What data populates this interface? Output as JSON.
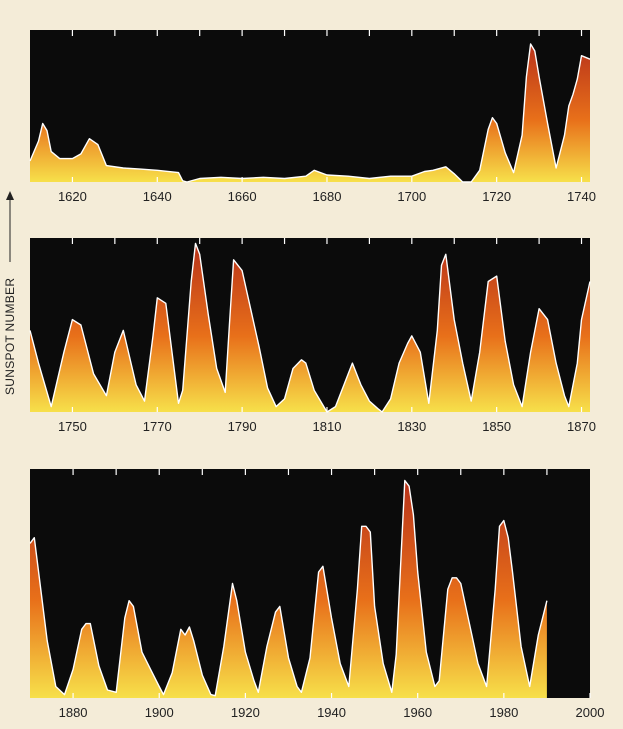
{
  "chart_data": {
    "type": "area",
    "ylabel": "SUNSPOT NUMBER",
    "colors": {
      "background": "#0b0b0b",
      "high": "#b8321a",
      "mid": "#e8701a",
      "low": "#f7e04a",
      "outline": "#ffffff",
      "page": "#f4ecd8"
    },
    "panels": [
      {
        "xlim": [
          1610,
          1742
        ],
        "xticks": [
          1620,
          1640,
          1660,
          1680,
          1700,
          1720,
          1740
        ],
        "ylim": [
          0,
          130
        ],
        "x": [
          1610,
          1612,
          1613,
          1614,
          1615,
          1617,
          1620,
          1622,
          1624,
          1626,
          1628,
          1632,
          1636,
          1640,
          1645,
          1646,
          1647,
          1650,
          1655,
          1660,
          1665,
          1670,
          1675,
          1677,
          1680,
          1685,
          1690,
          1695,
          1700,
          1703,
          1705,
          1708,
          1710,
          1712,
          1714,
          1716,
          1718,
          1719,
          1720,
          1722,
          1724,
          1726,
          1727,
          1728,
          1729,
          1730,
          1732,
          1734,
          1736,
          1737,
          1738,
          1739,
          1740,
          1742
        ],
        "y": [
          18,
          35,
          50,
          44,
          26,
          20,
          20,
          24,
          37,
          32,
          14,
          12,
          11,
          10,
          8,
          1,
          0,
          3,
          4,
          3,
          4,
          3,
          5,
          10,
          6,
          5,
          3,
          5,
          5,
          9,
          10,
          13,
          7,
          0,
          0,
          10,
          45,
          55,
          50,
          25,
          8,
          40,
          90,
          118,
          112,
          90,
          50,
          12,
          40,
          65,
          75,
          88,
          108,
          105
        ]
      },
      {
        "xlim": [
          1740,
          1872
        ],
        "xticks": [
          1750,
          1770,
          1790,
          1810,
          1830,
          1850,
          1870
        ],
        "ylim": [
          0,
          160
        ],
        "x": [
          1740,
          1742,
          1745,
          1748,
          1750,
          1752,
          1755,
          1758,
          1760,
          1762,
          1765,
          1767,
          1769,
          1770,
          1772,
          1775,
          1776,
          1778,
          1779,
          1780,
          1782,
          1784,
          1786,
          1787,
          1788,
          1790,
          1792,
          1794,
          1796,
          1798,
          1800,
          1802,
          1804,
          1805,
          1807,
          1810,
          1812,
          1815,
          1816,
          1818,
          1820,
          1822,
          1823,
          1825,
          1827,
          1829,
          1830,
          1832,
          1834,
          1836,
          1837,
          1838,
          1840,
          1842,
          1844,
          1846,
          1848,
          1850,
          1852,
          1854,
          1856,
          1858,
          1860,
          1862,
          1864,
          1866,
          1867,
          1869,
          1870,
          1872
        ],
        "y": [
          75,
          45,
          5,
          55,
          85,
          80,
          35,
          15,
          55,
          75,
          25,
          10,
          70,
          105,
          100,
          8,
          20,
          120,
          155,
          145,
          90,
          40,
          18,
          80,
          140,
          130,
          95,
          60,
          22,
          5,
          12,
          40,
          48,
          45,
          20,
          0,
          5,
          35,
          45,
          25,
          10,
          3,
          0,
          12,
          45,
          63,
          70,
          55,
          8,
          75,
          135,
          145,
          85,
          45,
          10,
          55,
          120,
          125,
          65,
          25,
          5,
          55,
          95,
          85,
          45,
          15,
          5,
          45,
          85,
          120
        ]
      },
      {
        "xlim": [
          1870,
          2000
        ],
        "xticks": [
          1880,
          1900,
          1920,
          1940,
          1960,
          1980,
          2000
        ],
        "ylim": [
          0,
          200
        ],
        "x": [
          1870,
          1871,
          1872,
          1874,
          1876,
          1878,
          1880,
          1882,
          1883,
          1884,
          1886,
          1888,
          1890,
          1892,
          1893,
          1894,
          1896,
          1898,
          1900,
          1901,
          1903,
          1905,
          1906,
          1907,
          1908,
          1910,
          1912,
          1913,
          1915,
          1917,
          1918,
          1920,
          1922,
          1923,
          1925,
          1927,
          1928,
          1930,
          1932,
          1933,
          1935,
          1937,
          1938,
          1940,
          1942,
          1944,
          1946,
          1947,
          1948,
          1949,
          1950,
          1952,
          1954,
          1955,
          1957,
          1958,
          1959,
          1960,
          1962,
          1964,
          1965,
          1967,
          1968,
          1969,
          1970,
          1972,
          1974,
          1976,
          1978,
          1979,
          1980,
          1981,
          1982,
          1984,
          1986,
          1988,
          1989,
          1990
        ],
        "y": [
          135,
          140,
          110,
          50,
          10,
          3,
          25,
          60,
          65,
          65,
          28,
          7,
          5,
          70,
          85,
          80,
          40,
          25,
          10,
          3,
          22,
          60,
          55,
          62,
          50,
          20,
          3,
          2,
          45,
          100,
          85,
          40,
          15,
          5,
          45,
          75,
          80,
          35,
          10,
          5,
          35,
          110,
          115,
          70,
          30,
          10,
          95,
          150,
          150,
          145,
          80,
          30,
          5,
          38,
          190,
          185,
          160,
          110,
          40,
          10,
          15,
          95,
          105,
          105,
          100,
          65,
          30,
          10,
          95,
          150,
          155,
          140,
          110,
          45,
          10,
          55,
          70,
          85
        ]
      }
    ]
  }
}
